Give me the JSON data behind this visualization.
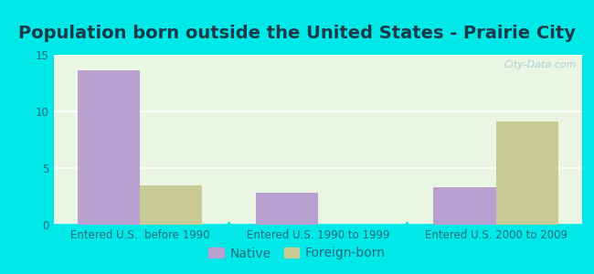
{
  "title": "Population born outside the United States - Prairie City",
  "categories": [
    "Entered U.S.  before 1990",
    "Entered U.S. 1990 to 1999",
    "Entered U.S. 2000 to 2009"
  ],
  "native_values": [
    13.6,
    2.8,
    3.3
  ],
  "foreign_values": [
    3.5,
    0,
    9.1
  ],
  "native_color": "#b8a0d0",
  "foreign_color": "#c8cc94",
  "bar_width": 0.35,
  "ylim": [
    0,
    15
  ],
  "yticks": [
    0,
    5,
    10,
    15
  ],
  "background_outer": "#00e8e8",
  "background_inner": "#eaf5e4",
  "grid_color": "#ffffff",
  "legend_native": "Native",
  "legend_foreign": "Foreign-born",
  "watermark": "City-Data.com",
  "title_fontsize": 14,
  "tick_fontsize": 8.5,
  "legend_fontsize": 10,
  "title_color": "#1a3a4a"
}
